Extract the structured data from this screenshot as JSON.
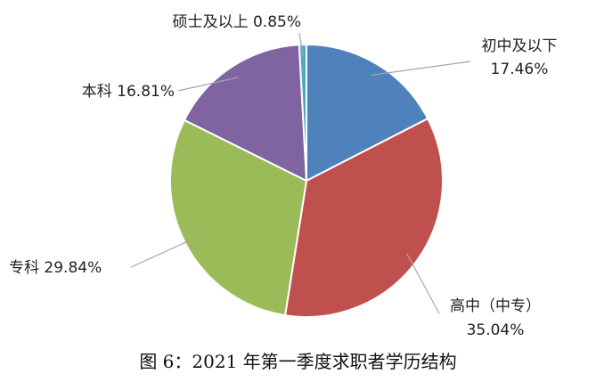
{
  "chart_data": {
    "type": "pie",
    "title": "",
    "slices": [
      {
        "label": "初中及以下",
        "value": 17.46,
        "value_label": "17.46%",
        "color": "#4f81bd"
      },
      {
        "label": "高中（中专）",
        "value": 35.04,
        "value_label": "35.04%",
        "color": "#c0504d"
      },
      {
        "label": "专科",
        "value": 29.84,
        "value_label": "29.84%",
        "color": "#9bbb59"
      },
      {
        "label": "本科",
        "value": 16.81,
        "value_label": "16.81%",
        "color": "#8064a2"
      },
      {
        "label": "硕士及以上",
        "value": 0.85,
        "value_label": "0.85%",
        "color": "#4bacc6"
      }
    ],
    "start_angle": "12 o'clock",
    "direction": "clockwise",
    "legend": "none"
  },
  "caption": "图 6：2021 年第一季度求职者学历结构"
}
